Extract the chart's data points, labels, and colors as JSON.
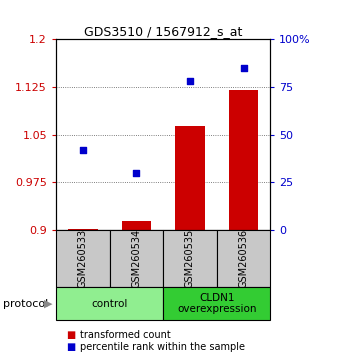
{
  "title": "GDS3510 / 1567912_s_at",
  "samples": [
    "GSM260533",
    "GSM260534",
    "GSM260535",
    "GSM260536"
  ],
  "bar_values": [
    0.902,
    0.915,
    1.063,
    1.12
  ],
  "scatter_pct": [
    42,
    30,
    78,
    85
  ],
  "bar_color": "#cc0000",
  "scatter_color": "#0000cc",
  "ylim_left": [
    0.9,
    1.2
  ],
  "ylim_right": [
    0,
    100
  ],
  "yticks_left": [
    0.9,
    0.975,
    1.05,
    1.125,
    1.2
  ],
  "yticks_right": [
    0,
    25,
    50,
    75,
    100
  ],
  "ytick_labels_left": [
    "0.9",
    "0.975",
    "1.05",
    "1.125",
    "1.2"
  ],
  "ytick_labels_right": [
    "0",
    "25",
    "50",
    "75",
    "100%"
  ],
  "groups": [
    {
      "label": "control",
      "samples": [
        0,
        1
      ],
      "color": "#90ee90"
    },
    {
      "label": "CLDN1\noverexpression",
      "samples": [
        2,
        3
      ],
      "color": "#33cc33"
    }
  ],
  "protocol_label": "protocol",
  "legend_items": [
    {
      "color": "#cc0000",
      "label": "transformed count"
    },
    {
      "color": "#0000cc",
      "label": "percentile rank within the sample"
    }
  ],
  "bar_width": 0.55,
  "background_color": "#ffffff",
  "plot_bg_color": "#ffffff",
  "grid_color": "#555555",
  "sample_box_color": "#c8c8c8"
}
